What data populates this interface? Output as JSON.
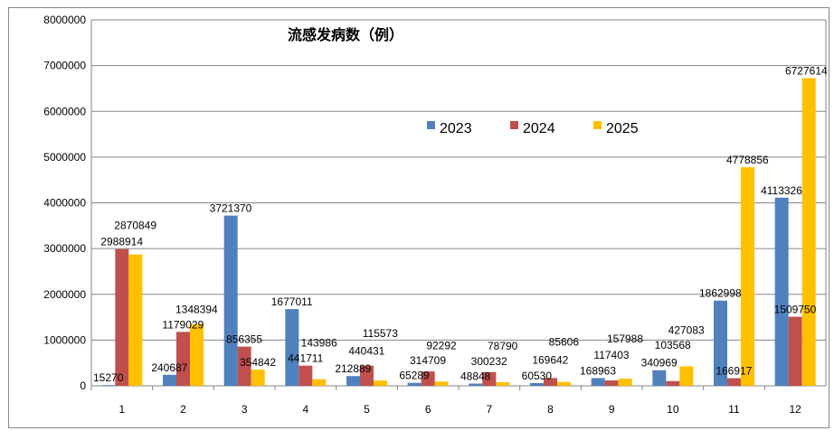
{
  "chart_data": {
    "type": "bar",
    "title": "流感发病数（例）",
    "categories": [
      "1",
      "2",
      "3",
      "4",
      "5",
      "6",
      "7",
      "8",
      "9",
      "10",
      "11",
      "12"
    ],
    "ylim": [
      0,
      8000000
    ],
    "yticks": [
      0,
      1000000,
      2000000,
      3000000,
      4000000,
      5000000,
      6000000,
      7000000,
      8000000
    ],
    "grid": true,
    "legend": "top-center",
    "series": [
      {
        "name": "2023",
        "color": "#4F81BD",
        "values": [
          15270,
          240687,
          3721370,
          1677011,
          212889,
          65289,
          48848,
          60530,
          168963,
          340969,
          1862998,
          4113326
        ]
      },
      {
        "name": "2024",
        "color": "#C0504D",
        "values": [
          2988914,
          1179029,
          856355,
          441711,
          440431,
          314709,
          300232,
          169642,
          117403,
          103568,
          166917,
          1509750
        ]
      },
      {
        "name": "2025",
        "color": "#FFC000",
        "values": [
          2870849,
          1348394,
          354842,
          143986,
          115573,
          92292,
          78790,
          85606,
          157988,
          427083,
          4778856,
          6727614
        ]
      }
    ]
  }
}
